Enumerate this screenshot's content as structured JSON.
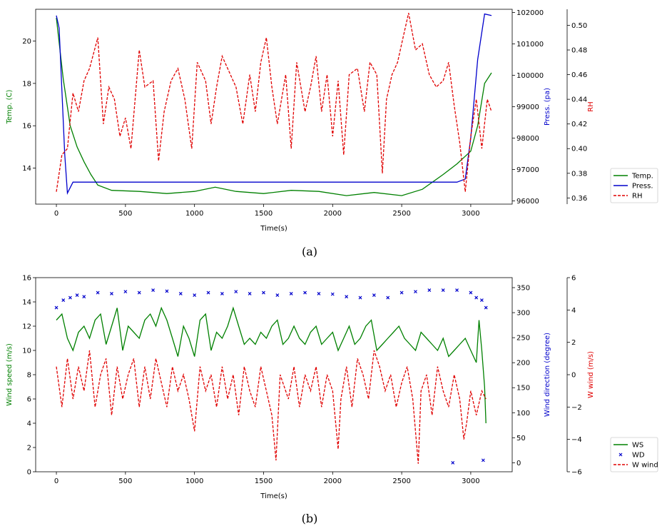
{
  "colors": {
    "green": "#008000",
    "blue": "#0000cc",
    "red": "#e00000",
    "axis": "#000000"
  },
  "chart_data": [
    {
      "type": "line",
      "caption": "(a)",
      "xlabel": "Time(s)",
      "xlim": [
        -150,
        3300
      ],
      "xticks": [
        "0",
        "500",
        "1000",
        "1500",
        "2000",
        "2500",
        "3000"
      ],
      "axes": [
        {
          "id": "temp",
          "label": "Temp. (C)",
          "color": "#008000",
          "side": "left",
          "ylim": [
            12.3,
            21.5
          ],
          "ticks": [
            "14",
            "16",
            "18",
            "20"
          ]
        },
        {
          "id": "press",
          "label": "Press. (pa)",
          "color": "#0000cc",
          "side": "right",
          "ylim": [
            95900,
            102100
          ],
          "ticks": [
            "96000",
            "97000",
            "98000",
            "99000",
            "100000",
            "101000",
            "102000"
          ]
        },
        {
          "id": "rh",
          "label": "RH",
          "color": "#e00000",
          "side": "right-outer",
          "ylim": [
            0.355,
            0.513
          ],
          "ticks": [
            "0.36",
            "0.38",
            "0.40",
            "0.42",
            "0.44",
            "0.46",
            "0.48",
            "0.50"
          ]
        }
      ],
      "legend": {
        "placement": "outside-right",
        "entries": [
          "Temp.",
          "Press.",
          "RH"
        ]
      },
      "series": [
        {
          "name": "Temp.",
          "axis": "temp",
          "style": "solid",
          "color": "#008000",
          "x": [
            0,
            50,
            100,
            150,
            200,
            250,
            300,
            400,
            600,
            800,
            1000,
            1150,
            1300,
            1500,
            1700,
            1900,
            2100,
            2300,
            2500,
            2650,
            2800,
            2900,
            3000,
            3050,
            3100,
            3150
          ],
          "y": [
            21.1,
            18.2,
            16.0,
            15.0,
            14.3,
            13.7,
            13.2,
            12.95,
            12.9,
            12.8,
            12.9,
            13.1,
            12.9,
            12.8,
            12.95,
            12.9,
            12.7,
            12.85,
            12.7,
            13.0,
            13.7,
            14.2,
            14.8,
            16.0,
            18.0,
            18.5
          ]
        },
        {
          "name": "Press.",
          "axis": "press",
          "style": "solid",
          "color": "#0000cc",
          "x": [
            0,
            20,
            40,
            60,
            80,
            120,
            200,
            500,
            1000,
            1500,
            2000,
            2500,
            2900,
            2960,
            3000,
            3050,
            3100,
            3150
          ],
          "y": [
            101900,
            101500,
            99500,
            97500,
            96250,
            96600,
            96600,
            96600,
            96600,
            96600,
            96600,
            96600,
            96600,
            96700,
            98000,
            100500,
            101950,
            101900
          ]
        },
        {
          "name": "RH",
          "axis": "rh",
          "style": "dashed",
          "color": "#e00000",
          "x": [
            0,
            40,
            80,
            120,
            160,
            200,
            240,
            300,
            340,
            380,
            420,
            460,
            500,
            540,
            600,
            640,
            700,
            740,
            780,
            830,
            880,
            930,
            980,
            1020,
            1080,
            1120,
            1160,
            1200,
            1260,
            1300,
            1350,
            1400,
            1440,
            1480,
            1520,
            1560,
            1600,
            1660,
            1700,
            1740,
            1800,
            1840,
            1880,
            1920,
            1960,
            2000,
            2040,
            2080,
            2120,
            2180,
            2230,
            2270,
            2320,
            2360,
            2390,
            2430,
            2470,
            2510,
            2550,
            2600,
            2650,
            2700,
            2750,
            2800,
            2840,
            2880,
            2920,
            2960,
            3000,
            3040,
            3080,
            3120,
            3150
          ],
          "y": [
            0.365,
            0.395,
            0.4,
            0.445,
            0.43,
            0.455,
            0.465,
            0.49,
            0.42,
            0.45,
            0.44,
            0.41,
            0.425,
            0.4,
            0.48,
            0.45,
            0.455,
            0.39,
            0.43,
            0.455,
            0.465,
            0.44,
            0.4,
            0.47,
            0.455,
            0.42,
            0.45,
            0.475,
            0.46,
            0.45,
            0.42,
            0.46,
            0.43,
            0.47,
            0.49,
            0.45,
            0.42,
            0.46,
            0.4,
            0.47,
            0.43,
            0.45,
            0.475,
            0.43,
            0.46,
            0.41,
            0.455,
            0.395,
            0.46,
            0.465,
            0.43,
            0.47,
            0.46,
            0.38,
            0.44,
            0.46,
            0.47,
            0.49,
            0.51,
            0.48,
            0.485,
            0.46,
            0.45,
            0.455,
            0.47,
            0.435,
            0.405,
            0.365,
            0.41,
            0.44,
            0.4,
            0.44,
            0.43
          ]
        }
      ]
    },
    {
      "type": "line",
      "caption": "(b)",
      "xlabel": "Time(s)",
      "xlim": [
        -150,
        3300
      ],
      "xticks": [
        "0",
        "500",
        "1000",
        "1500",
        "2000",
        "2500",
        "3000"
      ],
      "axes": [
        {
          "id": "ws",
          "label": "Wind speed (m/s)",
          "color": "#008000",
          "side": "left",
          "ylim": [
            0,
            16
          ],
          "ticks": [
            "0",
            "2",
            "4",
            "6",
            "8",
            "10",
            "12",
            "14",
            "16"
          ]
        },
        {
          "id": "wd",
          "label": "Wind direction (degree)",
          "color": "#0000cc",
          "side": "right",
          "ylim": [
            -18,
            370
          ],
          "ticks": [
            "0",
            "50",
            "100",
            "150",
            "200",
            "250",
            "300",
            "350"
          ]
        },
        {
          "id": "ww",
          "label": "W wind (m/s)",
          "color": "#e00000",
          "side": "right-outer",
          "ylim": [
            -6,
            6
          ],
          "ticks": [
            "−6",
            "−4",
            "−2",
            "0",
            "2",
            "4",
            "6"
          ]
        }
      ],
      "legend": {
        "placement": "outside-right",
        "entries": [
          "WS",
          "WD",
          "W wind"
        ]
      },
      "series": [
        {
          "name": "WS",
          "axis": "ws",
          "style": "solid",
          "color": "#008000",
          "x": [
            0,
            40,
            80,
            120,
            160,
            200,
            240,
            280,
            320,
            360,
            400,
            440,
            480,
            520,
            560,
            600,
            640,
            680,
            720,
            760,
            800,
            840,
            880,
            920,
            960,
            1000,
            1040,
            1080,
            1120,
            1160,
            1200,
            1240,
            1280,
            1320,
            1360,
            1400,
            1440,
            1480,
            1520,
            1560,
            1600,
            1640,
            1680,
            1720,
            1760,
            1800,
            1840,
            1880,
            1920,
            1960,
            2000,
            2040,
            2080,
            2120,
            2160,
            2200,
            2240,
            2280,
            2320,
            2360,
            2400,
            2440,
            2480,
            2520,
            2560,
            2600,
            2640,
            2680,
            2720,
            2760,
            2800,
            2840,
            2880,
            2920,
            2960,
            3000,
            3040,
            3060,
            3080,
            3100,
            3110
          ],
          "y": [
            12.5,
            13.0,
            11.0,
            10.0,
            11.5,
            12.0,
            11.0,
            12.5,
            13.0,
            10.5,
            12.0,
            13.5,
            10.0,
            12.0,
            11.5,
            11.0,
            12.5,
            13.0,
            12.0,
            13.5,
            12.5,
            11.0,
            9.5,
            12.0,
            11.0,
            9.5,
            12.5,
            13.0,
            10.0,
            11.5,
            11.0,
            12.0,
            13.5,
            12.0,
            10.5,
            11.0,
            10.5,
            11.5,
            11.0,
            12.0,
            12.5,
            10.5,
            11.0,
            12.0,
            11.0,
            10.5,
            11.5,
            12.0,
            10.5,
            11.0,
            11.5,
            10.0,
            11.0,
            12.0,
            10.5,
            11.0,
            12.0,
            12.5,
            10.0,
            10.5,
            11.0,
            11.5,
            12.0,
            11.0,
            10.5,
            10.0,
            11.5,
            11.0,
            10.5,
            10.0,
            11.0,
            9.5,
            10.0,
            10.5,
            11.0,
            10.0,
            9.0,
            12.5,
            10.0,
            7.0,
            4.0
          ]
        },
        {
          "name": "WD",
          "axis": "wd",
          "style": "markers",
          "color": "#0000cc",
          "x": [
            0,
            50,
            100,
            150,
            200,
            300,
            400,
            500,
            600,
            700,
            800,
            900,
            1000,
            1100,
            1200,
            1300,
            1400,
            1500,
            1600,
            1700,
            1800,
            1900,
            2000,
            2100,
            2200,
            2300,
            2400,
            2500,
            2600,
            2700,
            2800,
            2900,
            3000,
            3040,
            3080,
            3110,
            2870,
            3090
          ],
          "y": [
            310,
            325,
            330,
            335,
            332,
            340,
            338,
            342,
            340,
            345,
            343,
            338,
            335,
            340,
            338,
            342,
            338,
            340,
            335,
            338,
            340,
            338,
            337,
            332,
            330,
            335,
            330,
            340,
            342,
            345,
            345,
            345,
            340,
            330,
            325,
            310,
            0,
            5
          ]
        },
        {
          "name": "W wind",
          "axis": "ww",
          "style": "dashed",
          "color": "#e00000",
          "x": [
            0,
            40,
            80,
            120,
            160,
            200,
            240,
            280,
            320,
            360,
            400,
            440,
            480,
            520,
            560,
            600,
            640,
            680,
            720,
            760,
            800,
            840,
            880,
            920,
            960,
            1000,
            1040,
            1080,
            1120,
            1160,
            1200,
            1240,
            1280,
            1320,
            1360,
            1400,
            1440,
            1480,
            1520,
            1560,
            1590,
            1620,
            1680,
            1720,
            1760,
            1800,
            1840,
            1880,
            1920,
            1960,
            2000,
            2040,
            2060,
            2100,
            2140,
            2180,
            2220,
            2260,
            2300,
            2340,
            2380,
            2420,
            2460,
            2500,
            2540,
            2580,
            2620,
            2640,
            2680,
            2720,
            2760,
            2800,
            2840,
            2880,
            2920,
            2950,
            2970,
            3000,
            3040,
            3080,
            3110
          ],
          "y": [
            0.5,
            -2.0,
            1.0,
            -1.5,
            0.5,
            -1.0,
            1.5,
            -2.0,
            0.0,
            1.0,
            -2.5,
            0.5,
            -1.5,
            0.0,
            1.0,
            -2.0,
            0.5,
            -1.5,
            1.0,
            -0.5,
            -2.0,
            0.5,
            -1.0,
            0.0,
            -1.5,
            -3.5,
            0.5,
            -1.0,
            0.0,
            -2.0,
            0.5,
            -1.5,
            0.0,
            -2.5,
            0.5,
            -1.0,
            -2.0,
            0.5,
            -1.0,
            -2.5,
            -5.3,
            0.0,
            -1.5,
            0.5,
            -2.0,
            0.0,
            -1.0,
            0.5,
            -2.0,
            0.0,
            -1.0,
            -4.6,
            -1.5,
            0.5,
            -2.0,
            1.0,
            0.0,
            -1.5,
            1.5,
            0.5,
            -1.0,
            0.0,
            -2.0,
            -0.5,
            0.5,
            -1.5,
            -5.5,
            -1.0,
            0.0,
            -2.5,
            0.5,
            -1.0,
            -2.0,
            0.0,
            -1.5,
            -4.0,
            -3.0,
            -1.0,
            -2.5,
            -1.0,
            -1.5
          ]
        }
      ]
    }
  ]
}
